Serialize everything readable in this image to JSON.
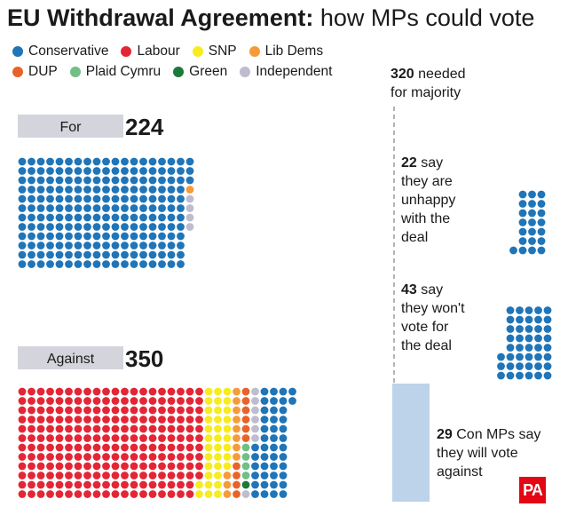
{
  "title": {
    "bold": "EU Withdrawal Agreement:",
    "rest": " how MPs could vote"
  },
  "legend": [
    [
      {
        "label": "Conservative",
        "color": "#1f75b8"
      },
      {
        "label": "Labour",
        "color": "#e32636"
      },
      {
        "label": "SNP",
        "color": "#f7ec1f"
      },
      {
        "label": "Lib Dems",
        "color": "#f59b3b"
      }
    ],
    [
      {
        "label": "DUP",
        "color": "#e8632a"
      },
      {
        "label": "Plaid Cymru",
        "color": "#6fbf86"
      },
      {
        "label": "Green",
        "color": "#1a7a3a"
      },
      {
        "label": "Independent",
        "color": "#bdbdcf"
      }
    ]
  ],
  "chart_data": {
    "type": "waffle",
    "majority": {
      "value": "320",
      "text_line1": " needed",
      "text_line2": "for majority"
    },
    "groups": [
      {
        "key": "for",
        "label": "For",
        "total": "224",
        "composition": [
          {
            "party": "Conservative",
            "count": 219
          },
          {
            "party": "Lib Dems",
            "count": 1
          },
          {
            "party": "Independent",
            "count": 4
          }
        ]
      },
      {
        "key": "against",
        "label": "Against",
        "total": "350",
        "composition": [
          {
            "party": "Labour",
            "count": 238
          },
          {
            "party": "SNP",
            "count": 35
          },
          {
            "party": "Lib Dems",
            "count": 11
          },
          {
            "party": "DUP",
            "count": 10
          },
          {
            "party": "Plaid Cymru",
            "count": 4
          },
          {
            "party": "Green",
            "count": 1
          },
          {
            "party": "Independent",
            "count": 7
          },
          {
            "party": "Conservative",
            "count": 44
          }
        ]
      }
    ],
    "annotations": [
      {
        "key": "unhappy",
        "count": 22,
        "party": "Conservative",
        "value": "22",
        "lines": [
          " say",
          "they are",
          "unhappy",
          "with the",
          "deal"
        ]
      },
      {
        "key": "wont",
        "count": 43,
        "party": "Conservative",
        "value": "43",
        "lines": [
          " say",
          "they won't",
          "vote for",
          "the deal"
        ]
      },
      {
        "key": "against",
        "count": 29,
        "party": "Conservative",
        "value": "29",
        "lines": [
          " Con MPs say",
          "they will vote",
          "against"
        ]
      }
    ]
  },
  "badge": "PA"
}
